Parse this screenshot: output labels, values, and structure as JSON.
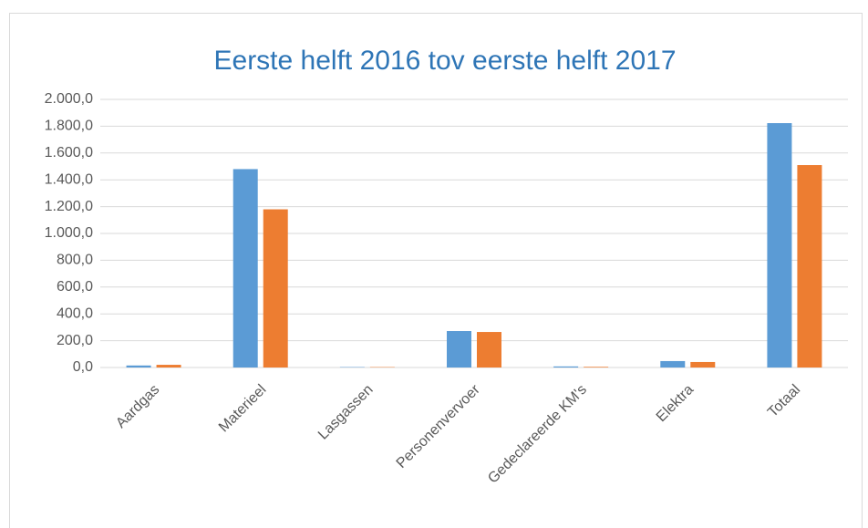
{
  "chart_data": {
    "type": "bar",
    "title": "Eerste helft 2016 tov eerste helft 2017",
    "categories": [
      "Aardgas",
      "Materieel",
      "Lasgassen",
      "Personenvervoer",
      "Gedeclareerde KM's",
      "Elektra",
      "Totaal"
    ],
    "series": [
      {
        "color": "#5b9bd5",
        "values": [
          15,
          1480,
          3,
          272,
          8,
          48,
          1823
        ]
      },
      {
        "color": "#ed7d31",
        "values": [
          20,
          1180,
          3,
          265,
          5,
          41,
          1510
        ]
      }
    ],
    "ylim": [
      0,
      2000
    ],
    "yticks": [
      {
        "value": 0,
        "label": "0,0"
      },
      {
        "value": 200,
        "label": "200,0"
      },
      {
        "value": 400,
        "label": "400,0"
      },
      {
        "value": 600,
        "label": "600,0"
      },
      {
        "value": 800,
        "label": "800,0"
      },
      {
        "value": 1000,
        "label": "1.000,0"
      },
      {
        "value": 1200,
        "label": "1.200,0"
      },
      {
        "value": 1400,
        "label": "1.400,0"
      },
      {
        "value": 1600,
        "label": "1.600,0"
      },
      {
        "value": 1800,
        "label": "1.800,0"
      },
      {
        "value": 2000,
        "label": "2.000,0"
      }
    ],
    "grid": true
  }
}
